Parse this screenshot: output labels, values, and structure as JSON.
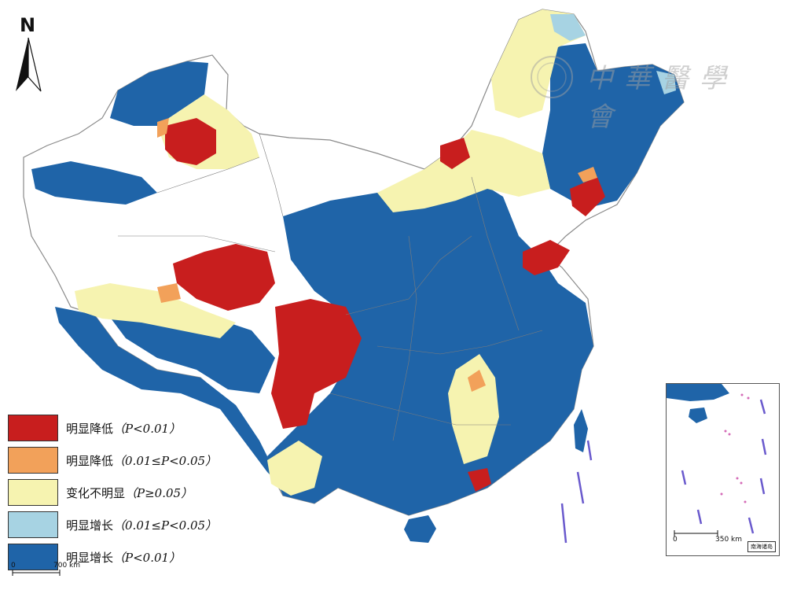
{
  "north_label": "N",
  "colors": {
    "sig_decrease_strong": "#c81e1e",
    "sig_decrease": "#f2a15a",
    "no_change": "#f6f3b0",
    "sig_increase": "#a7d3e3",
    "sig_increase_strong": "#1f64a8",
    "no_data": "#ffffff",
    "border": "#8a8a8a"
  },
  "legend": [
    {
      "color": "#c81e1e",
      "text": "明显降低",
      "cond": "（P<0.01）"
    },
    {
      "color": "#f2a15a",
      "text": "明显降低",
      "cond": "（0.01≤P<0.05）"
    },
    {
      "color": "#f6f3b0",
      "text": "变化不明显",
      "cond": "（P≥0.05）"
    },
    {
      "color": "#a7d3e3",
      "text": "明显增长",
      "cond": "（0.01≤P<0.05）"
    },
    {
      "color": "#1f64a8",
      "text": "明显增长",
      "cond": "（P<0.01）"
    }
  ],
  "scale": {
    "start": "0",
    "end": "700 km"
  },
  "inset": {
    "scale_start": "0",
    "scale_end": "350 km",
    "label": "南海诸岛"
  },
  "watermark": {
    "text": "中華醫學會"
  }
}
